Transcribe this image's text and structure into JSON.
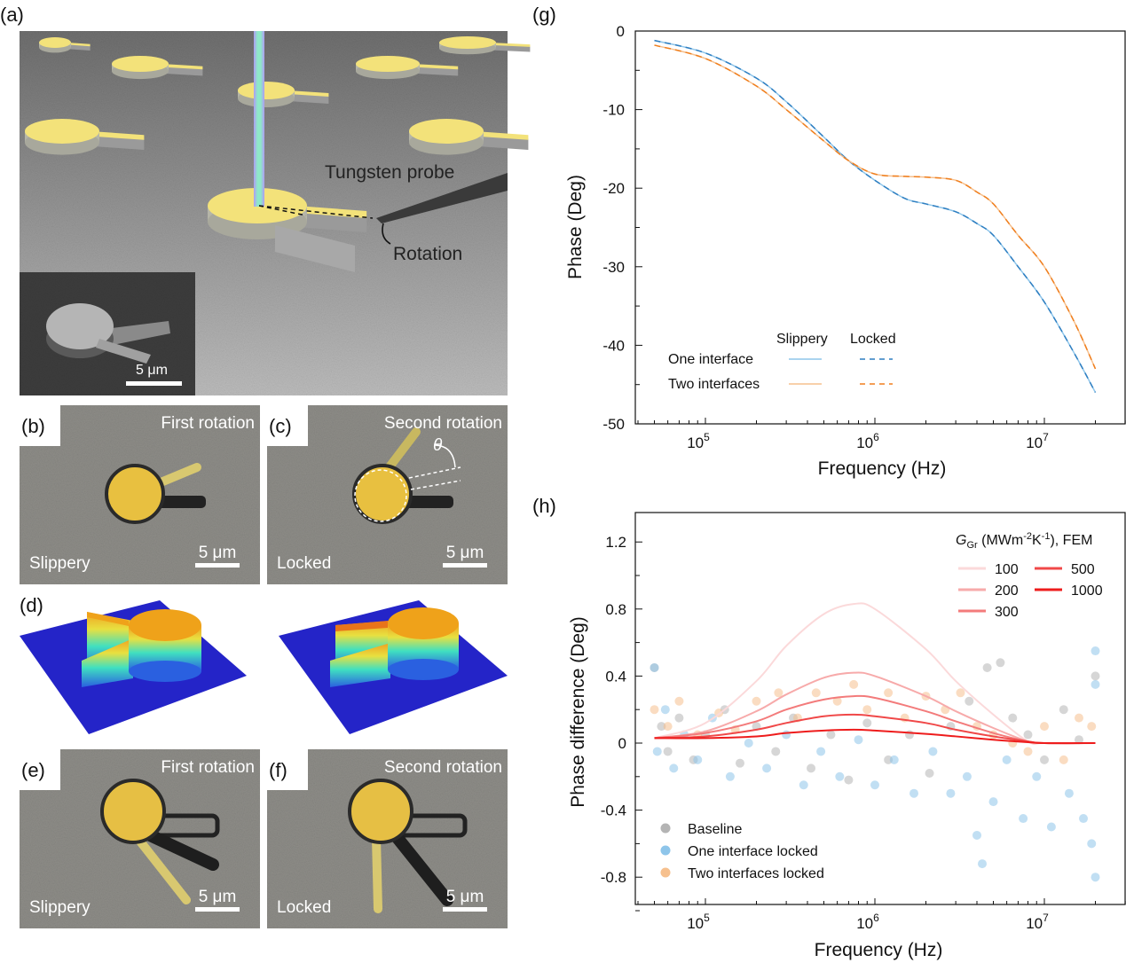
{
  "panels": {
    "a": {
      "label": "(a)",
      "probe_label": "Tungsten probe",
      "rotation_label": "Rotation",
      "inset_scale": "5 μm"
    },
    "b": {
      "label": "(b)",
      "title": "First rotation",
      "state": "Slippery",
      "scale": "5 μm"
    },
    "c": {
      "label": "(c)",
      "title": "Second rotation",
      "state": "Locked",
      "scale": "5 μm",
      "angle": "θ"
    },
    "d": {
      "label": "(d)"
    },
    "e": {
      "label": "(e)",
      "title": "First rotation",
      "state": "Slippery",
      "scale": "5 μm"
    },
    "f": {
      "label": "(f)",
      "title": "Second rotation",
      "state": "Locked",
      "scale": "5 μm"
    },
    "g": {
      "label": "(g)"
    },
    "h": {
      "label": "(h)"
    }
  },
  "colors": {
    "blue": "#2f7fc1",
    "light_blue": "#8ec5ea",
    "orange": "#f07f1e",
    "light_orange": "#f6c08e",
    "grey": "#b4b4b4",
    "pad_yellow": "#f3e27a",
    "substrate_blue": "#2424c8"
  },
  "chart_data": [
    {
      "type": "line",
      "panel": "g",
      "xlabel": "Frequency (Hz)",
      "ylabel": "Phase (Deg)",
      "xscale": "log",
      "xlim": [
        38000,
        30000000
      ],
      "ylim": [
        -50,
        0
      ],
      "xticks": [
        100000,
        1000000,
        10000000
      ],
      "xtick_labels": [
        {
          "base": "10",
          "exp": "5"
        },
        {
          "base": "10",
          "exp": "6"
        },
        {
          "base": "10",
          "exp": "7"
        }
      ],
      "yticks": [
        0,
        -10,
        -20,
        -30,
        -40,
        -50
      ],
      "ytick_labels": [
        "0",
        "-10",
        "-20",
        "-30",
        "-40",
        "-50"
      ],
      "legend": {
        "col_headers": [
          "Slippery",
          "Locked"
        ],
        "row_labels": [
          "One interface",
          "Two interfaces"
        ],
        "placement": "bottom-left"
      },
      "x": [
        50000,
        100000,
        200000,
        300000,
        500000,
        700000,
        1000000,
        1500000,
        2000000,
        3000000,
        4000000,
        5000000,
        7000000,
        10000000,
        15000000,
        20000000
      ],
      "series": [
        {
          "row": "One interface",
          "col": "Slippery",
          "style": "solid",
          "color": "#8ec5ea",
          "values": [
            -1.2,
            -2.8,
            -6,
            -9,
            -13.5,
            -16.5,
            -19,
            -21.3,
            -22,
            -23,
            -24.5,
            -26,
            -30,
            -34.5,
            -41,
            -46
          ]
        },
        {
          "row": "One interface",
          "col": "Locked",
          "style": "dashed",
          "color": "#2f7fc1",
          "values": [
            -1.2,
            -2.8,
            -6,
            -9,
            -13.5,
            -16.5,
            -19,
            -21.3,
            -22,
            -23,
            -24.5,
            -26,
            -30,
            -34.5,
            -41,
            -46
          ]
        },
        {
          "row": "Two interfaces",
          "col": "Slippery",
          "style": "solid",
          "color": "#f6c08e",
          "values": [
            -1.8,
            -3.5,
            -7,
            -10,
            -14,
            -16.5,
            -18.2,
            -18.5,
            -18.6,
            -19,
            -20.5,
            -22,
            -26,
            -30,
            -37,
            -43
          ]
        },
        {
          "row": "Two interfaces",
          "col": "Locked",
          "style": "dashed",
          "color": "#f07f1e",
          "values": [
            -1.8,
            -3.5,
            -7,
            -10,
            -14,
            -16.5,
            -18.2,
            -18.5,
            -18.6,
            -19,
            -20.5,
            -22,
            -26,
            -30,
            -37,
            -43
          ]
        }
      ]
    },
    {
      "type": "scatter",
      "panel": "h",
      "xlabel": "Frequency (Hz)",
      "ylabel": "Phase difference (Deg)",
      "xscale": "log",
      "xlim": [
        38000,
        30000000
      ],
      "ylim": [
        -0.97,
        1.37
      ],
      "xticks": [
        100000,
        1000000,
        10000000
      ],
      "xtick_labels": [
        {
          "base": "10",
          "exp": "5"
        },
        {
          "base": "10",
          "exp": "6"
        },
        {
          "base": "10",
          "exp": "7"
        }
      ],
      "yticks": [
        1.2,
        0.8,
        0.4,
        0,
        -0.4,
        -0.8
      ],
      "ytick_labels": [
        "1.2",
        "0.8",
        "0.4",
        "0",
        "-0.4",
        "-0.8"
      ],
      "fem_legend_title": {
        "symbol": "G",
        "sub": "Gr",
        "t1": " (MWm",
        "s1": "-2",
        "t2": "K",
        "s2": "-1",
        "t3": "), FEM"
      },
      "fem_x": [
        50000,
        100000,
        200000,
        300000,
        500000,
        750000,
        1000000,
        2000000,
        3000000,
        5000000,
        8000000,
        10000000,
        20000000
      ],
      "fem_series": [
        {
          "name": "100",
          "color": "#fbd9da",
          "values": [
            0.03,
            0.12,
            0.37,
            0.58,
            0.77,
            0.83,
            0.8,
            0.56,
            0.37,
            0.17,
            0.01,
            0,
            0
          ]
        },
        {
          "name": "200",
          "color": "#f7aaaa",
          "values": [
            0.03,
            0.07,
            0.19,
            0.29,
            0.39,
            0.42,
            0.4,
            0.28,
            0.19,
            0.09,
            0.01,
            0,
            0
          ]
        },
        {
          "name": "300",
          "color": "#f37b7b",
          "values": [
            0.03,
            0.06,
            0.13,
            0.2,
            0.26,
            0.28,
            0.27,
            0.19,
            0.13,
            0.06,
            0.01,
            0,
            0
          ]
        },
        {
          "name": "500",
          "color": "#f04848",
          "values": [
            0.03,
            0.04,
            0.08,
            0.12,
            0.16,
            0.17,
            0.16,
            0.12,
            0.08,
            0.04,
            0.01,
            0,
            0
          ]
        },
        {
          "name": "1000",
          "color": "#ee1c1c",
          "values": [
            0.03,
            0.03,
            0.04,
            0.06,
            0.075,
            0.08,
            0.075,
            0.055,
            0.04,
            0.02,
            0.005,
            0,
            0
          ]
        }
      ],
      "scatter_series": [
        {
          "name": "Baseline",
          "color": "#b4b4b4",
          "points": [
            [
              50000,
              0.45
            ],
            [
              55000,
              0.1
            ],
            [
              60000,
              -0.05
            ],
            [
              70000,
              0.15
            ],
            [
              85000,
              -0.1
            ],
            [
              100000,
              0.05
            ],
            [
              130000,
              0.2
            ],
            [
              160000,
              -0.12
            ],
            [
              200000,
              0.1
            ],
            [
              260000,
              -0.05
            ],
            [
              330000,
              0.15
            ],
            [
              420000,
              -0.15
            ],
            [
              550000,
              0.05
            ],
            [
              700000,
              -0.22
            ],
            [
              900000,
              0.12
            ],
            [
              1200000,
              -0.1
            ],
            [
              1600000,
              0.05
            ],
            [
              2100000,
              -0.18
            ],
            [
              2800000,
              0.1
            ],
            [
              3600000,
              0.25
            ],
            [
              4600000,
              0.45
            ],
            [
              5500000,
              0.48
            ],
            [
              6500000,
              0.15
            ],
            [
              8000000,
              0.05
            ],
            [
              10000000,
              -0.1
            ],
            [
              13000000,
              0.2
            ],
            [
              16000000,
              0.02
            ],
            [
              20000000,
              0.4
            ]
          ]
        },
        {
          "name": "One interface locked",
          "color": "#8ec5ea",
          "points": [
            [
              50000,
              0.45
            ],
            [
              52000,
              -0.05
            ],
            [
              58000,
              0.2
            ],
            [
              65000,
              -0.15
            ],
            [
              75000,
              0.05
            ],
            [
              90000,
              -0.1
            ],
            [
              110000,
              0.15
            ],
            [
              140000,
              -0.2
            ],
            [
              180000,
              0.0
            ],
            [
              230000,
              -0.15
            ],
            [
              300000,
              0.05
            ],
            [
              380000,
              -0.25
            ],
            [
              480000,
              -0.05
            ],
            [
              620000,
              -0.2
            ],
            [
              800000,
              0.02
            ],
            [
              1000000,
              -0.25
            ],
            [
              1300000,
              -0.1
            ],
            [
              1700000,
              -0.3
            ],
            [
              2200000,
              -0.05
            ],
            [
              2800000,
              -0.3
            ],
            [
              3500000,
              -0.2
            ],
            [
              4000000,
              -0.55
            ],
            [
              4300000,
              -0.72
            ],
            [
              5000000,
              -0.35
            ],
            [
              6000000,
              -0.1
            ],
            [
              7500000,
              -0.45
            ],
            [
              9000000,
              -0.2
            ],
            [
              11000000,
              -0.5
            ],
            [
              14000000,
              -0.3
            ],
            [
              17000000,
              -0.45
            ],
            [
              19000000,
              -0.6
            ],
            [
              20000000,
              -0.8
            ],
            [
              20000000,
              0.55
            ],
            [
              20000000,
              0.35
            ]
          ]
        },
        {
          "name": "Two interfaces locked",
          "color": "#f6c08e",
          "points": [
            [
              50000,
              0.2
            ],
            [
              60000,
              0.1
            ],
            [
              70000,
              0.25
            ],
            [
              90000,
              0.05
            ],
            [
              120000,
              0.18
            ],
            [
              150000,
              0.08
            ],
            [
              200000,
              0.25
            ],
            [
              270000,
              0.3
            ],
            [
              350000,
              0.15
            ],
            [
              450000,
              0.3
            ],
            [
              600000,
              0.25
            ],
            [
              750000,
              0.35
            ],
            [
              900000,
              0.2
            ],
            [
              1200000,
              0.3
            ],
            [
              1500000,
              0.15
            ],
            [
              2000000,
              0.28
            ],
            [
              2600000,
              0.2
            ],
            [
              3200000,
              0.3
            ],
            [
              4000000,
              0.1
            ],
            [
              5000000,
              0.05
            ],
            [
              6500000,
              0.0
            ],
            [
              8000000,
              -0.05
            ],
            [
              10000000,
              0.1
            ],
            [
              13000000,
              -0.1
            ],
            [
              16000000,
              0.15
            ],
            [
              19000000,
              0.1
            ]
          ]
        }
      ],
      "legend_placement": "bottom-left"
    }
  ]
}
